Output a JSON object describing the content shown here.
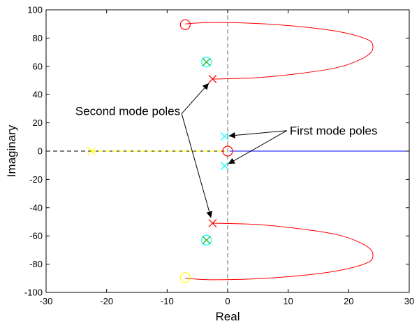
{
  "chart_data": {
    "type": "scatter",
    "title": "",
    "xlabel": "Real",
    "ylabel": "Imaginary",
    "xlim": [
      -30,
      30
    ],
    "ylim": [
      -100,
      100
    ],
    "xticks": [
      -30,
      -20,
      -10,
      0,
      10,
      20,
      30
    ],
    "yticks": [
      -100,
      -80,
      -60,
      -40,
      -20,
      0,
      20,
      40,
      60,
      80,
      100
    ],
    "grid": false,
    "colors": {
      "red": "#ff0000",
      "cyan": "#00ffff",
      "green": "#00aa00",
      "yellow": "#ffff00",
      "blue": "#0000ff",
      "gray": "#808080"
    },
    "locus_upper": [
      [
        -2.5,
        51
      ],
      [
        5,
        52
      ],
      [
        12,
        55
      ],
      [
        18,
        59
      ],
      [
        21.5,
        64
      ],
      [
        23.5,
        69
      ],
      [
        24,
        73.5
      ],
      [
        23.5,
        78
      ],
      [
        21,
        82
      ],
      [
        17,
        85.5
      ],
      [
        11,
        88.5
      ],
      [
        4,
        90.5
      ],
      [
        -3,
        91
      ],
      [
        -7,
        90
      ]
    ],
    "locus_lower": [
      [
        -2.5,
        -51
      ],
      [
        5,
        -52
      ],
      [
        12,
        -55
      ],
      [
        18,
        -59
      ],
      [
        21.5,
        -64
      ],
      [
        23.5,
        -69
      ],
      [
        24,
        -73.5
      ],
      [
        23.5,
        -78
      ],
      [
        21,
        -82
      ],
      [
        17,
        -85.5
      ],
      [
        11,
        -88.5
      ],
      [
        4,
        -90.5
      ],
      [
        -3,
        -91
      ],
      [
        -7,
        -90
      ]
    ],
    "real_axis_locus_yellow": [
      [
        -22.5,
        0
      ],
      [
        -0.3,
        0
      ]
    ],
    "real_axis_locus_blue": [
      [
        0.3,
        0
      ],
      [
        30,
        0
      ]
    ],
    "imag_axis_dashed": [
      [
        0,
        -100
      ],
      [
        0,
        100
      ]
    ],
    "poles": [
      {
        "x": -2.5,
        "y": 51,
        "color": "red"
      },
      {
        "x": -2.5,
        "y": -51,
        "color": "red"
      },
      {
        "x": -0.5,
        "y": 10.5,
        "color": "cyan"
      },
      {
        "x": -0.5,
        "y": -10.5,
        "color": "cyan"
      },
      {
        "x": -22.5,
        "y": 0,
        "color": "yellow"
      },
      {
        "x": -3.5,
        "y": 63,
        "color": "green"
      },
      {
        "x": -3.5,
        "y": -63,
        "color": "green"
      }
    ],
    "zeros": [
      {
        "x": -7,
        "y": 89.5,
        "color": "red"
      },
      {
        "x": -7,
        "y": -89.5,
        "color": "yellow"
      },
      {
        "x": 0,
        "y": 0,
        "color": "red"
      },
      {
        "x": -3.5,
        "y": 63,
        "color": "cyan"
      },
      {
        "x": -3.5,
        "y": -63,
        "color": "cyan"
      }
    ],
    "annotations": [
      {
        "text": "Second mode poles",
        "text_at": [
          -16.5,
          28.5
        ],
        "arrows": [
          [
            -2.5,
            51
          ],
          [
            -2.5,
            -51
          ]
        ]
      },
      {
        "text": "First mode poles",
        "text_at": [
          17.5,
          14.5
        ],
        "arrows": [
          [
            -0.5,
            10.5
          ],
          [
            -0.5,
            -10.5
          ]
        ]
      }
    ]
  }
}
